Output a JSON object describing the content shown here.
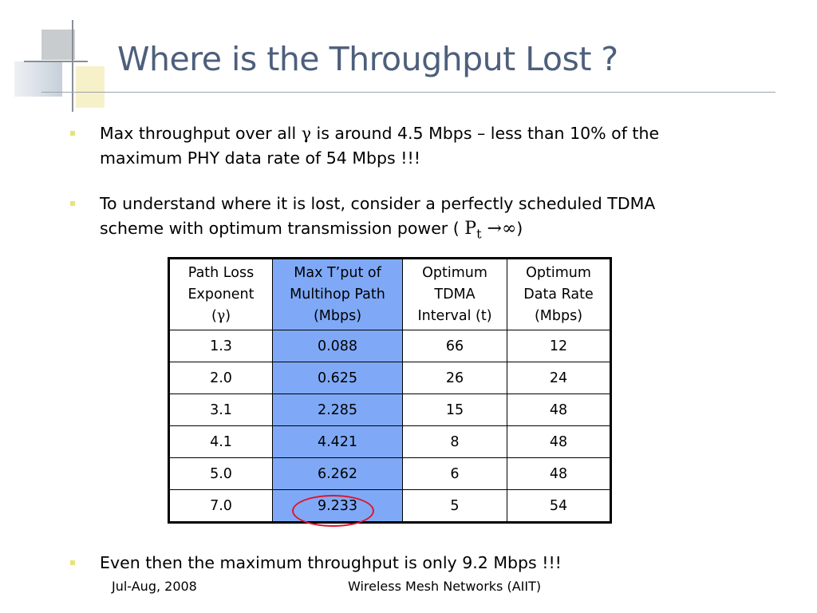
{
  "title": "Where is the Throughput Lost ?",
  "bullets": [
    {
      "line1_a": "Max throughput over all ",
      "line1_gamma": "γ",
      "line1_b": " is around 4.5 Mbps – less than 10% of the",
      "line2": "maximum PHY data rate of 54 Mbps !!!"
    },
    {
      "line1": "To understand where it is lost, consider a perfectly scheduled TDMA",
      "line2_a": "scheme with optimum transmission power (",
      "formula_p": "P",
      "formula_sub": "t",
      "formula_rest": "→∞",
      "line2_b": ")"
    },
    {
      "text": "Even then the maximum throughput is only 9.2 Mbps !!!"
    }
  ],
  "table": {
    "headers": [
      {
        "l1": "Path Loss",
        "l2": "Exponent",
        "l3a": "(",
        "l3g": "γ",
        "l3b": ")"
      },
      {
        "l1": "Max T’put of",
        "l2": "Multihop Path",
        "l3": "(Mbps)"
      },
      {
        "l1": "Optimum",
        "l2": "TDMA",
        "l3": "Interval (t)"
      },
      {
        "l1": "Optimum",
        "l2": "Data Rate",
        "l3": "(Mbps)"
      }
    ],
    "rows": [
      [
        "1.3",
        "0.088",
        "66",
        "12"
      ],
      [
        "2.0",
        "0.625",
        "26",
        "24"
      ],
      [
        "3.1",
        "2.285",
        "15",
        "48"
      ],
      [
        "4.1",
        "4.421",
        "8",
        "48"
      ],
      [
        "5.0",
        "6.262",
        "6",
        "48"
      ],
      [
        "7.0",
        "9.233",
        "5",
        "54"
      ]
    ],
    "highlight_color": "#7fa9f7",
    "circle_color": "#e0142a"
  },
  "footer": {
    "date": "Jul-Aug, 2008",
    "course": "Wireless Mesh Networks (AIIT)"
  }
}
